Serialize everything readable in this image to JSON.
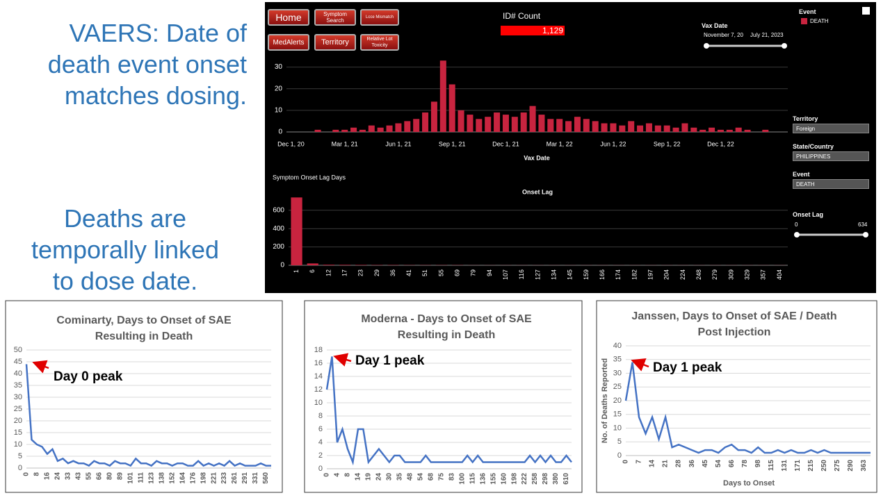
{
  "slide": {
    "heading": [
      "VAERS: Date of",
      "death event onset",
      "matches dosing."
    ],
    "subheading": [
      "Deaths are",
      "temporally linked",
      "to dose date."
    ]
  },
  "dashboard": {
    "buttons": [
      "Home",
      "Symptom Search",
      "Lcce Mismatch",
      "MedAlerts",
      "Territory",
      "Relative Lot Toxicity"
    ],
    "id_count": {
      "label": "ID# Count",
      "value": "1,129"
    },
    "vax_date": {
      "label": "Vax Date",
      "from": "November 7, 20",
      "to": "July 21, 2023"
    },
    "legend": {
      "title": "Event",
      "items": [
        "DEATH"
      ]
    },
    "filters": [
      {
        "label": "Territory",
        "value": "Foreign"
      },
      {
        "label": "State/Country",
        "value": "PHILIPPINES"
      },
      {
        "label": "Event",
        "value": "DEATH"
      }
    ],
    "onset_lag": {
      "label": "Onset Lag",
      "min": "0",
      "max": "634"
    }
  },
  "chart_data": [
    {
      "type": "bar",
      "xlabel": "Vax Date",
      "color": "#c8243f",
      "categories": [
        "Dec 1, 20",
        null,
        null,
        null,
        null,
        null,
        "Mar 1, 21",
        null,
        null,
        null,
        null,
        null,
        "Jun 1, 21",
        null,
        null,
        null,
        null,
        null,
        "Sep 1, 21",
        null,
        null,
        null,
        null,
        null,
        "Dec 1, 21",
        null,
        null,
        null,
        null,
        null,
        "Mar 1, 22",
        null,
        null,
        null,
        null,
        null,
        "Jun 1, 22",
        null,
        null,
        null,
        null,
        null,
        "Sep 1, 22",
        null,
        null,
        null,
        null,
        null,
        "Dec 1, 22",
        null,
        null,
        null,
        null,
        null,
        null,
        null
      ],
      "values": [
        0,
        0,
        0,
        1,
        0,
        1,
        1,
        2,
        1,
        3,
        2,
        3,
        4,
        5,
        6,
        9,
        14,
        33,
        22,
        10,
        8,
        6,
        7,
        9,
        8,
        7,
        9,
        12,
        8,
        6,
        6,
        5,
        7,
        6,
        5,
        4,
        4,
        3,
        5,
        3,
        4,
        3,
        3,
        2,
        4,
        2,
        1,
        2,
        1,
        1,
        2,
        1,
        0,
        1,
        0,
        0
      ],
      "ylim": [
        0,
        35
      ],
      "yticks": [
        0,
        10,
        20,
        30
      ],
      "grid": true
    },
    {
      "type": "bar",
      "title": "Onset Lag",
      "subtitle": "Symptom Onset Lag Days",
      "color": "#c8243f",
      "categories": [
        "1",
        "6",
        "12",
        "17",
        "23",
        "29",
        "36",
        "41",
        "51",
        "55",
        "69",
        "79",
        "94",
        "107",
        "116",
        "127",
        "134",
        "145",
        "159",
        "166",
        "174",
        "182",
        "197",
        "204",
        "224",
        "248",
        "279",
        "309",
        "329",
        "357",
        "404"
      ],
      "values": [
        740,
        20,
        6,
        5,
        4,
        3,
        3,
        2,
        2,
        2,
        2,
        1,
        1,
        1,
        1,
        1,
        1,
        1,
        1,
        1,
        1,
        1,
        1,
        1,
        1,
        1,
        1,
        1,
        1,
        1,
        1
      ],
      "ylim": [
        0,
        750
      ],
      "yticks": [
        0,
        200,
        400,
        600
      ],
      "grid": true
    },
    {
      "type": "line",
      "title": [
        "Cominarty, Days to Onset of SAE",
        "Resulting in Death"
      ],
      "color": "#4472c4",
      "annotation": "Day 0 peak",
      "categories": [
        "0",
        null,
        "8",
        null,
        "16",
        null,
        "24",
        null,
        "33",
        null,
        "43",
        null,
        "55",
        null,
        "66",
        null,
        "80",
        null,
        "89",
        null,
        "101",
        null,
        "111",
        null,
        "123",
        null,
        "138",
        null,
        "152",
        null,
        "164",
        null,
        "176",
        null,
        "198",
        null,
        "221",
        null,
        "233",
        null,
        "261",
        null,
        "291",
        null,
        "331",
        null,
        "560",
        null
      ],
      "values": [
        44,
        12,
        10,
        9,
        6,
        8,
        3,
        4,
        2,
        3,
        2,
        2,
        1,
        3,
        2,
        2,
        1,
        3,
        2,
        2,
        1,
        4,
        2,
        2,
        1,
        3,
        2,
        2,
        1,
        2,
        2,
        1,
        1,
        3,
        1,
        2,
        1,
        2,
        1,
        3,
        1,
        2,
        1,
        1,
        1,
        2,
        1,
        1
      ],
      "ylim": [
        0,
        50
      ],
      "yticks": [
        0,
        5,
        10,
        15,
        20,
        25,
        30,
        35,
        40,
        45,
        50
      ],
      "grid": true
    },
    {
      "type": "line",
      "title": [
        "Moderna - Days to Onset of SAE",
        "Resulting in Death"
      ],
      "color": "#4472c4",
      "annotation": "Day 1 peak",
      "categories": [
        "0",
        null,
        "4",
        null,
        "8",
        null,
        "14",
        null,
        "19",
        null,
        "24",
        null,
        "30",
        null,
        "35",
        null,
        "48",
        null,
        "54",
        null,
        "68",
        null,
        "75",
        null,
        "83",
        null,
        "100",
        null,
        "115",
        null,
        "136",
        null,
        "155",
        null,
        "160",
        null,
        "198",
        null,
        "222",
        null,
        "258",
        null,
        "298",
        null,
        "380",
        null,
        "610",
        null
      ],
      "values": [
        12,
        17,
        4,
        6,
        3,
        1,
        6,
        6,
        1,
        2,
        3,
        2,
        1,
        2,
        2,
        1,
        1,
        1,
        1,
        2,
        1,
        1,
        1,
        1,
        1,
        1,
        1,
        2,
        1,
        2,
        1,
        1,
        1,
        1,
        1,
        1,
        1,
        1,
        1,
        2,
        1,
        2,
        1,
        2,
        1,
        1,
        2,
        1
      ],
      "ylim": [
        0,
        18
      ],
      "yticks": [
        0,
        2,
        4,
        6,
        8,
        10,
        12,
        14,
        16,
        18
      ],
      "grid": true
    },
    {
      "type": "line",
      "title": [
        "Janssen, Days to Onset of SAE / Death",
        "Post Injection"
      ],
      "xlabel": "Days  to Onset",
      "ylabel": "No. of Deaths Reported",
      "color": "#4472c4",
      "annotation": "Day 1 peak",
      "categories": [
        "0",
        null,
        "7",
        null,
        "14",
        null,
        "21",
        null,
        "28",
        null,
        "36",
        null,
        "45",
        null,
        "54",
        null,
        "66",
        null,
        "78",
        null,
        "98",
        null,
        "115",
        null,
        "131",
        null,
        "171",
        null,
        "215",
        null,
        "250",
        null,
        "275",
        null,
        "290",
        null,
        "363",
        null
      ],
      "values": [
        20,
        34,
        14,
        8,
        14,
        6,
        14,
        3,
        4,
        3,
        2,
        1,
        2,
        2,
        1,
        3,
        4,
        2,
        2,
        1,
        3,
        1,
        1,
        2,
        1,
        2,
        1,
        1,
        2,
        1,
        2,
        1,
        1,
        1,
        1,
        1,
        1,
        1
      ],
      "ylim": [
        0,
        40
      ],
      "yticks": [
        0,
        5,
        10,
        15,
        20,
        25,
        30,
        35,
        40
      ],
      "grid": true
    }
  ]
}
